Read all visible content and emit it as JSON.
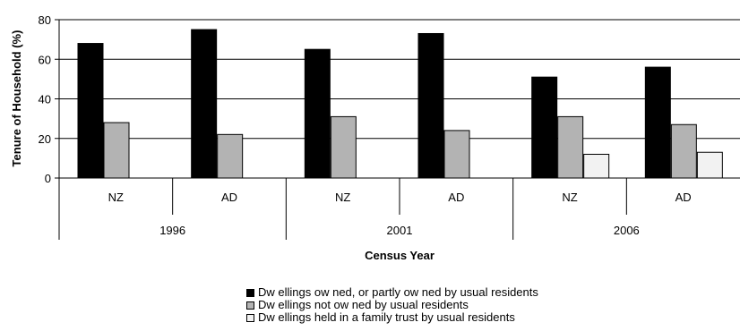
{
  "chart_data": {
    "type": "bar",
    "ylabel": "Tenure of Household (%)",
    "xlabel": "Census Year",
    "ylim": [
      0,
      80
    ],
    "yticks": [
      0,
      20,
      40,
      60,
      80
    ],
    "grid": true,
    "legend_position": "bottom",
    "groups": [
      {
        "year": "1996",
        "categories": [
          "NZ",
          "AD"
        ]
      },
      {
        "year": "2001",
        "categories": [
          "NZ",
          "AD"
        ]
      },
      {
        "year": "2006",
        "categories": [
          "NZ",
          "AD"
        ]
      }
    ],
    "categories": [
      "NZ",
      "AD",
      "NZ",
      "AD",
      "NZ",
      "AD"
    ],
    "series": [
      {
        "name": "Dw ellings ow ned, or partly ow ned by usual residents",
        "color": "#000000",
        "values": [
          68,
          75,
          65,
          73,
          51,
          56
        ]
      },
      {
        "name": "Dw ellings not ow ned by usual residents",
        "color": "#b3b3b3",
        "values": [
          28,
          22,
          31,
          24,
          31,
          27
        ]
      },
      {
        "name": "Dw ellings held in a family trust by usual residents",
        "color": "#f2f2f2",
        "values": [
          null,
          null,
          null,
          null,
          12,
          13
        ]
      }
    ]
  }
}
